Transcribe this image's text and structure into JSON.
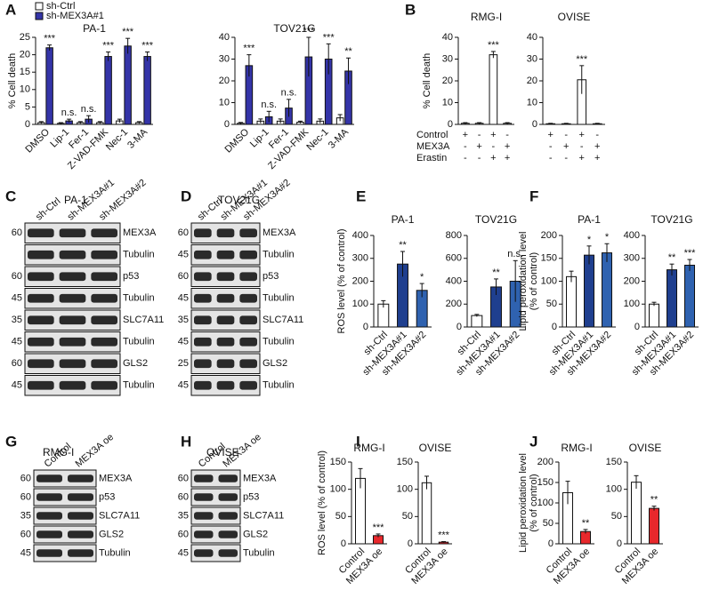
{
  "panel_labels": [
    "A",
    "B",
    "C",
    "D",
    "E",
    "F",
    "G",
    "H",
    "I",
    "J"
  ],
  "chart_data": [
    {
      "type": "bar",
      "title": "PA-1",
      "ylabel": [
        "% Cell death"
      ],
      "categories": [
        "DMSO",
        "Lip-1",
        "Fer-1",
        "Z-VAD-FMK",
        "Nec-1",
        "3-MA"
      ],
      "series": [
        {
          "name": "sh-Ctrl",
          "color": "#ffffff",
          "values": [
            0.5,
            0.3,
            0.5,
            0.5,
            1,
            0.5
          ],
          "errors": [
            0.3,
            0.2,
            0.3,
            0.3,
            0.5,
            0.3
          ]
        },
        {
          "name": "sh-MEX3A#1",
          "color": "#3434a8",
          "values": [
            22,
            1,
            1.5,
            19.5,
            22.5,
            19.5
          ],
          "errors": [
            0.8,
            0.5,
            1,
            1.3,
            2.2,
            1.3
          ],
          "annotations": [
            "***",
            "n.s.",
            "n.s.",
            "***",
            "***",
            "***"
          ]
        }
      ],
      "ylim": [
        0,
        25
      ],
      "yticks": [
        0,
        5,
        10,
        15,
        20,
        25
      ]
    },
    {
      "type": "bar",
      "title": "TOV21G",
      "categories": [
        "DMSO",
        "Lip-1",
        "Fer-1",
        "Z-VAD-FMK",
        "Nec-1",
        "3-MA"
      ],
      "series": [
        {
          "color": "#ffffff",
          "values": [
            0.5,
            1.5,
            1.5,
            1,
            1.5,
            3
          ],
          "errors": [
            0.4,
            1,
            1,
            0.5,
            1,
            1.5
          ]
        },
        {
          "color": "#3434a8",
          "values": [
            27,
            3.5,
            7.5,
            31,
            30,
            24.5
          ],
          "errors": [
            5,
            2.5,
            4,
            9,
            7,
            6
          ],
          "annotations": [
            "***",
            "n.s.",
            "n.s.",
            "***",
            "***",
            "**"
          ]
        }
      ],
      "ylim": [
        0,
        40
      ],
      "yticks": [
        0,
        10,
        20,
        30,
        40
      ]
    },
    {
      "type": "bar",
      "title": "RMG-I",
      "ylabel": [
        "% Cell death"
      ],
      "conditions": [
        {
          "label": "Control",
          "signs": [
            "+",
            "-",
            "+",
            "-"
          ]
        },
        {
          "label": "MEX3A",
          "signs": [
            "-",
            "+",
            "-",
            "+"
          ]
        },
        {
          "label": "Erastin",
          "signs": [
            "-",
            "-",
            "+",
            "+"
          ]
        }
      ],
      "series": [
        {
          "color": "#ffffff",
          "values": [
            0.5,
            0.5,
            32,
            0.5
          ],
          "errors": [
            0.3,
            0.3,
            1.5,
            0.3
          ],
          "annotations": [
            null,
            null,
            "***",
            null
          ]
        }
      ],
      "ylim": [
        0,
        40
      ],
      "yticks": [
        0,
        10,
        20,
        30,
        40
      ]
    },
    {
      "type": "bar",
      "title": "OVISE",
      "conditions": [
        {
          "label": "Control",
          "signs": [
            "+",
            "-",
            "+",
            "-"
          ]
        },
        {
          "label": "MEX3A",
          "signs": [
            "-",
            "+",
            "-",
            "+"
          ]
        },
        {
          "label": "Erastin",
          "signs": [
            "-",
            "-",
            "+",
            "+"
          ]
        }
      ],
      "series": [
        {
          "color": "#ffffff",
          "values": [
            0.3,
            0.3,
            20.5,
            0.3
          ],
          "errors": [
            0.2,
            0.2,
            6.5,
            0.2
          ],
          "annotations": [
            null,
            null,
            "***",
            null
          ]
        }
      ],
      "ylim": [
        0,
        40
      ],
      "yticks": [
        0,
        10,
        20,
        30,
        40
      ]
    },
    {
      "type": "bar",
      "title": "PA-1",
      "ylabel": [
        "ROS level (% of control)"
      ],
      "categories": [
        "sh-Ctrl",
        "sh-MEX3A#1",
        "sh-MEX3A#2"
      ],
      "series": [
        {
          "colors": [
            "#ffffff",
            "#1f3f8f",
            "#2f62b0"
          ],
          "values": [
            100,
            275,
            160
          ],
          "errors": [
            15,
            55,
            30
          ],
          "annotations": [
            null,
            "**",
            "*"
          ]
        }
      ],
      "ylim": [
        0,
        400
      ],
      "yticks": [
        0,
        100,
        200,
        300,
        400
      ]
    },
    {
      "type": "bar",
      "title": "TOV21G",
      "categories": [
        "sh-Ctrl",
        "sh-MEX3A#1",
        "sh-MEX3A#2"
      ],
      "series": [
        {
          "colors": [
            "#ffffff",
            "#1f3f8f",
            "#2f62b0"
          ],
          "values": [
            100,
            350,
            400
          ],
          "errors": [
            10,
            70,
            180
          ],
          "annotations": [
            null,
            "**",
            "n.s."
          ]
        }
      ],
      "ylim": [
        0,
        800
      ],
      "yticks": [
        0,
        200,
        400,
        600,
        800
      ]
    },
    {
      "type": "bar",
      "title": "PA-1",
      "ylabel": [
        "Lipid peroxidation level",
        "(% of control)"
      ],
      "categories": [
        "sh-Ctrl",
        "sh-MEX3A#1",
        "sh-MEX3A#2"
      ],
      "series": [
        {
          "colors": [
            "#ffffff",
            "#1f3f8f",
            "#2f62b0"
          ],
          "values": [
            110,
            157,
            162
          ],
          "errors": [
            12,
            20,
            20
          ],
          "annotations": [
            null,
            "*",
            "*"
          ]
        }
      ],
      "ylim": [
        0,
        200
      ],
      "yticks": [
        0,
        50,
        100,
        150,
        200
      ]
    },
    {
      "type": "bar",
      "title": "TOV21G",
      "categories": [
        "sh-Ctrl",
        "sh-MEX3A#1",
        "sh-MEX3A#2"
      ],
      "series": [
        {
          "colors": [
            "#ffffff",
            "#1f3f8f",
            "#2f62b0"
          ],
          "values": [
            100,
            250,
            270
          ],
          "errors": [
            8,
            25,
            25
          ],
          "annotations": [
            null,
            "**",
            "***"
          ]
        }
      ],
      "ylim": [
        0,
        400
      ],
      "yticks": [
        0,
        100,
        200,
        300,
        400
      ]
    },
    {
      "type": "bar",
      "title": "RMG-I",
      "ylabel": [
        "ROS level (% of control)"
      ],
      "categories": [
        "Control",
        "MEX3A oe"
      ],
      "series": [
        {
          "colors": [
            "#ffffff",
            "#e8282c"
          ],
          "values": [
            120,
            15
          ],
          "errors": [
            18,
            3
          ],
          "annotations": [
            null,
            "***"
          ]
        }
      ],
      "ylim": [
        0,
        150
      ],
      "yticks": [
        0,
        50,
        100,
        150
      ]
    },
    {
      "type": "bar",
      "title": "OVISE",
      "categories": [
        "Control",
        "MEX3A oe"
      ],
      "series": [
        {
          "colors": [
            "#ffffff",
            "#e8282c"
          ],
          "values": [
            112,
            3
          ],
          "errors": [
            12,
            1
          ],
          "annotations": [
            null,
            "***"
          ]
        }
      ],
      "ylim": [
        0,
        150
      ],
      "yticks": [
        0,
        50,
        100,
        150
      ]
    },
    {
      "type": "bar",
      "title": "RMG-I",
      "ylabel": [
        "Lipid peroxidation level",
        "(% of control)"
      ],
      "categories": [
        "Control",
        "MEX3A oe"
      ],
      "series": [
        {
          "colors": [
            "#ffffff",
            "#e8282c"
          ],
          "values": [
            125,
            30
          ],
          "errors": [
            28,
            5
          ],
          "annotations": [
            null,
            "**"
          ]
        }
      ],
      "ylim": [
        0,
        200
      ],
      "yticks": [
        0,
        50,
        100,
        150,
        200
      ]
    },
    {
      "type": "bar",
      "title": "OVISE",
      "categories": [
        "Control",
        "MEX3A oe"
      ],
      "series": [
        {
          "colors": [
            "#ffffff",
            "#e8282c"
          ],
          "values": [
            113,
            65
          ],
          "errors": [
            12,
            4
          ],
          "annotations": [
            null,
            "**"
          ]
        }
      ],
      "ylim": [
        0,
        150
      ],
      "yticks": [
        0,
        50,
        100,
        150
      ]
    }
  ],
  "blots": [
    {
      "title": "PA-1",
      "lanes": [
        "sh-Ctrl",
        "sh-MEX3A#1",
        "sh-MEX3A#2"
      ],
      "rows": [
        {
          "marker": 60,
          "protein": "MEX3A"
        },
        {
          "marker": null,
          "protein": "Tubulin"
        },
        {
          "marker": 60,
          "protein": "p53"
        },
        {
          "marker": 45,
          "protein": "Tubulin"
        },
        {
          "marker": 35,
          "protein": "SLC7A11"
        },
        {
          "marker": 45,
          "protein": "Tubulin"
        },
        {
          "marker": 60,
          "protein": "GLS2"
        },
        {
          "marker": 45,
          "protein": "Tubulin"
        }
      ]
    },
    {
      "title": "TOV21G",
      "lanes": [
        "sh-Ctrl",
        "sh-MEX3A#1",
        "sh-MEX3A#2"
      ],
      "rows": [
        {
          "marker": 60,
          "protein": "MEX3A"
        },
        {
          "marker": 45,
          "protein": "Tubulin"
        },
        {
          "marker": 60,
          "protein": "p53"
        },
        {
          "marker": 45,
          "protein": "Tubulin"
        },
        {
          "marker": 35,
          "protein": "SLC7A11"
        },
        {
          "marker": 45,
          "protein": "Tubulin"
        },
        {
          "marker": 25,
          "protein": "GLS2"
        },
        {
          "marker": 45,
          "protein": "Tubulin"
        }
      ]
    },
    {
      "title": "RMG-I",
      "lanes": [
        "Control",
        "MEX3A oe"
      ],
      "rows": [
        {
          "marker": 60,
          "protein": "MEX3A"
        },
        {
          "marker": 60,
          "protein": "p53"
        },
        {
          "marker": 35,
          "protein": "SLC7A11"
        },
        {
          "marker": 60,
          "protein": "GLS2"
        },
        {
          "marker": 45,
          "protein": "Tubulin"
        }
      ]
    },
    {
      "title": "OVISE",
      "lanes": [
        "Control",
        "MEX3A oe"
      ],
      "rows": [
        {
          "marker": 60,
          "protein": "MEX3A"
        },
        {
          "marker": 60,
          "protein": "p53"
        },
        {
          "marker": 35,
          "protein": "SLC7A11"
        },
        {
          "marker": 60,
          "protein": "GLS2"
        },
        {
          "marker": 45,
          "protein": "Tubulin"
        }
      ]
    }
  ]
}
